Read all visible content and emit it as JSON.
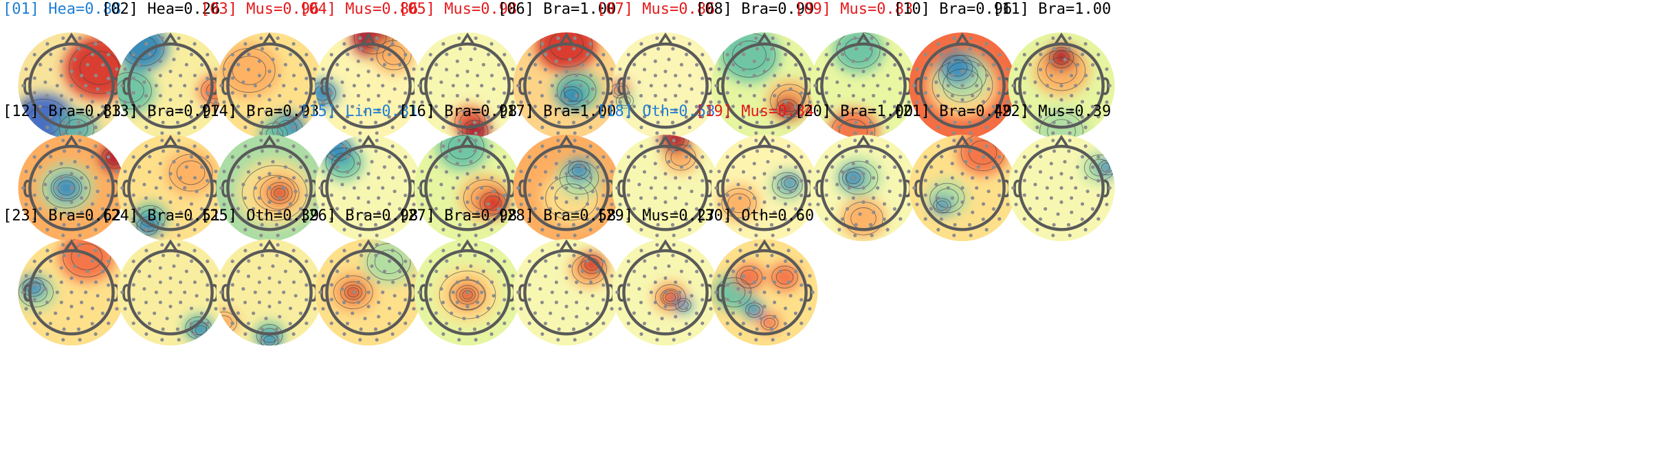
{
  "colors": {
    "default": "#000000",
    "Heart": "#1e7fd6",
    "Line": "#1e7fd6",
    "Other-blue": "#1e7fd6",
    "Muscle": "#e41a1c",
    "head_outline": "#5a5a5a",
    "sensor": "#8c8c8c"
  },
  "components": [
    {
      "label": "[01] Hea=0.88",
      "color": "#1e7fd6",
      "base": "#f8e39a",
      "spots": [
        {
          "c": "#d73027",
          "dx": 0.55,
          "dy": -0.35,
          "r": 0.7
        },
        {
          "c": "#3a66c7",
          "dx": -0.55,
          "dy": 0.7,
          "r": 0.6
        },
        {
          "c": "#5fb3a8",
          "dx": 0.1,
          "dy": 0.85,
          "r": 0.4
        }
      ]
    },
    {
      "label": "[02] Hea=0.26",
      "color": "#000000",
      "base": "#f9eea0",
      "spots": [
        {
          "c": "#2b83ba",
          "dx": -0.55,
          "dy": -0.75,
          "r": 0.5
        },
        {
          "c": "#66c2a5",
          "dx": -0.8,
          "dy": 0.1,
          "r": 0.5
        },
        {
          "c": "#f46d43",
          "dx": 0.9,
          "dy": 0.1,
          "r": 0.35
        }
      ]
    },
    {
      "label": "[03] Mus=0.96",
      "color": "#e41a1c",
      "base": "#fee08b",
      "spots": [
        {
          "c": "#3288bd",
          "dx": 0.35,
          "dy": 0.85,
          "r": 0.35
        },
        {
          "c": "#66c2a5",
          "dx": 0.1,
          "dy": 0.95,
          "r": 0.3
        },
        {
          "c": "#fdae61",
          "dx": -0.4,
          "dy": -0.3,
          "r": 0.6
        }
      ]
    },
    {
      "label": "[04] Mus=0.86",
      "color": "#e41a1c",
      "base": "#fdf4b0",
      "spots": [
        {
          "c": "#b2182b",
          "dx": 0.1,
          "dy": -0.95,
          "r": 0.45
        },
        {
          "c": "#3288bd",
          "dx": -0.9,
          "dy": 0.15,
          "r": 0.3
        },
        {
          "c": "#fdae61",
          "dx": 0.5,
          "dy": -0.6,
          "r": 0.4
        }
      ]
    },
    {
      "label": "[05] Mus=0.98",
      "color": "#e41a1c",
      "base": "#f7f7b2",
      "spots": [
        {
          "c": "#b2182b",
          "dx": 0.15,
          "dy": 0.9,
          "r": 0.3
        },
        {
          "c": "#f46d43",
          "dx": 0.05,
          "dy": 0.7,
          "r": 0.35
        }
      ]
    },
    {
      "label": "[06] Bra=1.00",
      "color": "#000000",
      "base": "#fdd387",
      "spots": [
        {
          "c": "#d73027",
          "dx": 0.0,
          "dy": -0.8,
          "r": 0.6
        },
        {
          "c": "#2b83ba",
          "dx": 0.1,
          "dy": 0.2,
          "r": 0.25
        },
        {
          "c": "#66c2a5",
          "dx": 0.2,
          "dy": 0.1,
          "r": 0.45
        }
      ]
    },
    {
      "label": "[07] Mus=0.86",
      "color": "#e41a1c",
      "base": "#fbf5b6",
      "spots": [
        {
          "c": "#d73027",
          "dx": -0.9,
          "dy": 0.1,
          "r": 0.2
        },
        {
          "c": "#abdda4",
          "dx": -0.8,
          "dy": 0.3,
          "r": 0.2
        }
      ]
    },
    {
      "label": "[08] Bra=0.99",
      "color": "#000000",
      "base": "#e6f5a0",
      "spots": [
        {
          "c": "#b2182b",
          "dx": 0.45,
          "dy": 0.45,
          "r": 0.25
        },
        {
          "c": "#66c2a5",
          "dx": -0.3,
          "dy": -0.6,
          "r": 0.6
        },
        {
          "c": "#fdae61",
          "dx": 0.5,
          "dy": 0.3,
          "r": 0.45
        }
      ]
    },
    {
      "label": "[09] Mus=0.83",
      "color": "#e41a1c",
      "base": "#e9f6a2",
      "spots": [
        {
          "c": "#f46d43",
          "dx": -0.2,
          "dy": 0.9,
          "r": 0.5
        },
        {
          "c": "#66c2a5",
          "dx": -0.1,
          "dy": -0.7,
          "r": 0.5
        }
      ]
    },
    {
      "label": "[10] Bra=0.96",
      "color": "#000000",
      "base": "#f46d43",
      "spots": [
        {
          "c": "#3288bd",
          "dx": -0.1,
          "dy": -0.35,
          "r": 0.35
        },
        {
          "c": "#abdda4",
          "dx": 0.0,
          "dy": -0.2,
          "r": 0.55
        },
        {
          "c": "#fee08b",
          "dx": 0.0,
          "dy": 0.0,
          "r": 0.7
        }
      ]
    },
    {
      "label": "[11] Bra=1.00",
      "color": "#000000",
      "base": "#e6f5a0",
      "spots": [
        {
          "c": "#b2182b",
          "dx": 0.0,
          "dy": -0.55,
          "r": 0.28
        },
        {
          "c": "#fdae61",
          "dx": 0.0,
          "dy": -0.3,
          "r": 0.55
        },
        {
          "c": "#abdda4",
          "dx": 0.0,
          "dy": 0.9,
          "r": 0.5
        }
      ]
    },
    {
      "label": "[12] Bra=0.83",
      "color": "#000000",
      "base": "#fdae61",
      "spots": [
        {
          "c": "#3288bd",
          "dx": -0.1,
          "dy": 0.0,
          "r": 0.3
        },
        {
          "c": "#abdda4",
          "dx": -0.1,
          "dy": 0.0,
          "r": 0.55
        },
        {
          "c": "#b2182b",
          "dx": 0.85,
          "dy": -0.6,
          "r": 0.3
        }
      ]
    },
    {
      "label": "[13] Bra=0.97",
      "color": "#000000",
      "base": "#fee08b",
      "spots": [
        {
          "c": "#3288bd",
          "dx": -0.45,
          "dy": 0.75,
          "r": 0.25
        },
        {
          "c": "#66c2a5",
          "dx": -0.4,
          "dy": 0.6,
          "r": 0.35
        },
        {
          "c": "#fdae61",
          "dx": 0.4,
          "dy": -0.3,
          "r": 0.5
        }
      ]
    },
    {
      "label": "[14] Bra=0.93",
      "color": "#000000",
      "base": "#abdda4",
      "spots": [
        {
          "c": "#d73027",
          "dx": 0.2,
          "dy": 0.1,
          "r": 0.2
        },
        {
          "c": "#fdae61",
          "dx": 0.2,
          "dy": 0.1,
          "r": 0.45
        },
        {
          "c": "#fee08b",
          "dx": 0.1,
          "dy": 0.1,
          "r": 0.75
        }
      ]
    },
    {
      "label": "[15] Lin=0.81",
      "color": "#1e7fd6",
      "base": "#f7f7b2",
      "spots": [
        {
          "c": "#3288bd",
          "dx": -0.6,
          "dy": -0.75,
          "r": 0.3
        },
        {
          "c": "#66c2a5",
          "dx": -0.5,
          "dy": -0.5,
          "r": 0.4
        }
      ]
    },
    {
      "label": "[16] Bra=0.98",
      "color": "#000000",
      "base": "#e6f5a0",
      "spots": [
        {
          "c": "#d73027",
          "dx": 0.5,
          "dy": 0.3,
          "r": 0.3
        },
        {
          "c": "#fdae61",
          "dx": 0.35,
          "dy": 0.2,
          "r": 0.5
        },
        {
          "c": "#66c2a5",
          "dx": -0.1,
          "dy": -0.8,
          "r": 0.5
        }
      ]
    },
    {
      "label": "[17] Bra=1.00",
      "color": "#000000",
      "base": "#fdae61",
      "spots": [
        {
          "c": "#3288bd",
          "dx": 0.25,
          "dy": -0.35,
          "r": 0.25
        },
        {
          "c": "#abdda4",
          "dx": 0.25,
          "dy": -0.2,
          "r": 0.45
        },
        {
          "c": "#fee08b",
          "dx": 0.1,
          "dy": 0.2,
          "r": 0.6
        }
      ]
    },
    {
      "label": "[18] Oth=0.58",
      "color": "#1e7fd6",
      "base": "#f7f7b2",
      "spots": [
        {
          "c": "#b2182b",
          "dx": 0.2,
          "dy": -0.95,
          "r": 0.3
        },
        {
          "c": "#fdae61",
          "dx": 0.3,
          "dy": -0.6,
          "r": 0.35
        }
      ]
    },
    {
      "label": "[19] Mus=0.84",
      "color": "#e41a1c",
      "base": "#fdf4b0",
      "spots": [
        {
          "c": "#3288bd",
          "dx": 0.5,
          "dy": -0.1,
          "r": 0.2
        },
        {
          "c": "#abdda4",
          "dx": 0.45,
          "dy": -0.05,
          "r": 0.35
        },
        {
          "c": "#fdae61",
          "dx": -0.5,
          "dy": 0.3,
          "r": 0.4
        }
      ]
    },
    {
      "label": "[20] Bra=1.00",
      "color": "#000000",
      "base": "#f7f7b2",
      "spots": [
        {
          "c": "#3288bd",
          "dx": -0.2,
          "dy": -0.2,
          "r": 0.25
        },
        {
          "c": "#abdda4",
          "dx": -0.1,
          "dy": -0.2,
          "r": 0.45
        },
        {
          "c": "#fdae61",
          "dx": 0.0,
          "dy": 0.6,
          "r": 0.45
        }
      ]
    },
    {
      "label": "[21] Bra=0.49",
      "color": "#000000",
      "base": "#fee08b",
      "spots": [
        {
          "c": "#3288bd",
          "dx": -0.4,
          "dy": 0.35,
          "r": 0.2
        },
        {
          "c": "#abdda4",
          "dx": -0.3,
          "dy": 0.2,
          "r": 0.4
        },
        {
          "c": "#f46d43",
          "dx": 0.4,
          "dy": -0.7,
          "r": 0.5
        }
      ]
    },
    {
      "label": "[22] Mus=0.39",
      "color": "#000000",
      "base": "#f7f7b2",
      "spots": [
        {
          "c": "#3288bd",
          "dx": 0.9,
          "dy": -0.4,
          "r": 0.2
        },
        {
          "c": "#abdda4",
          "dx": 0.75,
          "dy": -0.4,
          "r": 0.35
        }
      ]
    },
    {
      "label": "[23] Bra=0.62",
      "color": "#000000",
      "base": "#fee08b",
      "spots": [
        {
          "c": "#3288bd",
          "dx": -0.75,
          "dy": -0.1,
          "r": 0.25
        },
        {
          "c": "#abdda4",
          "dx": -0.7,
          "dy": 0.0,
          "r": 0.4
        },
        {
          "c": "#f46d43",
          "dx": 0.3,
          "dy": -0.7,
          "r": 0.55
        }
      ]
    },
    {
      "label": "[24] Bra=0.51",
      "color": "#000000",
      "base": "#f9eea0",
      "spots": [
        {
          "c": "#3288bd",
          "dx": 0.6,
          "dy": 0.75,
          "r": 0.2
        },
        {
          "c": "#66c2a5",
          "dx": 0.55,
          "dy": 0.7,
          "r": 0.3
        }
      ]
    },
    {
      "label": "[25] Oth=0.39",
      "color": "#000000",
      "base": "#f9eea0",
      "spots": [
        {
          "c": "#3288bd",
          "dx": 0.0,
          "dy": 0.95,
          "r": 0.2
        },
        {
          "c": "#66c2a5",
          "dx": 0.0,
          "dy": 0.85,
          "r": 0.3
        },
        {
          "c": "#fdae61",
          "dx": -0.9,
          "dy": 0.6,
          "r": 0.3
        }
      ]
    },
    {
      "label": "[26] Bra=0.98",
      "color": "#000000",
      "base": "#fee08b",
      "spots": [
        {
          "c": "#d73027",
          "dx": -0.3,
          "dy": 0.0,
          "r": 0.2
        },
        {
          "c": "#fdae61",
          "dx": -0.3,
          "dy": 0.0,
          "r": 0.45
        },
        {
          "c": "#abdda4",
          "dx": 0.4,
          "dy": -0.6,
          "r": 0.5
        }
      ]
    },
    {
      "label": "[27] Bra=0.98",
      "color": "#000000",
      "base": "#e6f5a0",
      "spots": [
        {
          "c": "#d73027",
          "dx": 0.0,
          "dy": 0.05,
          "r": 0.18
        },
        {
          "c": "#fdae61",
          "dx": 0.0,
          "dy": 0.05,
          "r": 0.4
        },
        {
          "c": "#fee08b",
          "dx": 0.0,
          "dy": 0.05,
          "r": 0.65
        }
      ]
    },
    {
      "label": "[28] Bra=0.58",
      "color": "#000000",
      "base": "#f7f7b2",
      "spots": [
        {
          "c": "#d73027",
          "dx": 0.5,
          "dy": -0.55,
          "r": 0.25
        },
        {
          "c": "#fdae61",
          "dx": 0.45,
          "dy": -0.45,
          "r": 0.4
        }
      ]
    },
    {
      "label": "[29] Mus=0.27",
      "color": "#000000",
      "base": "#f7f7b2",
      "spots": [
        {
          "c": "#d73027",
          "dx": 0.1,
          "dy": 0.1,
          "r": 0.18
        },
        {
          "c": "#3288bd",
          "dx": 0.35,
          "dy": 0.25,
          "r": 0.18
        },
        {
          "c": "#fdae61",
          "dx": 0.1,
          "dy": 0.1,
          "r": 0.35
        }
      ]
    },
    {
      "label": "[30] Oth=0.60",
      "color": "#000000",
      "base": "#fee08b",
      "spots": [
        {
          "c": "#f46d43",
          "dx": -0.3,
          "dy": -0.3,
          "r": 0.3
        },
        {
          "c": "#f46d43",
          "dx": 0.4,
          "dy": -0.3,
          "r": 0.3
        },
        {
          "c": "#3288bd",
          "dx": -0.2,
          "dy": 0.35,
          "r": 0.2
        },
        {
          "c": "#66c2a5",
          "dx": -0.6,
          "dy": 0.0,
          "r": 0.4
        },
        {
          "c": "#f46d43",
          "dx": 0.1,
          "dy": 0.6,
          "r": 0.2
        }
      ]
    }
  ]
}
